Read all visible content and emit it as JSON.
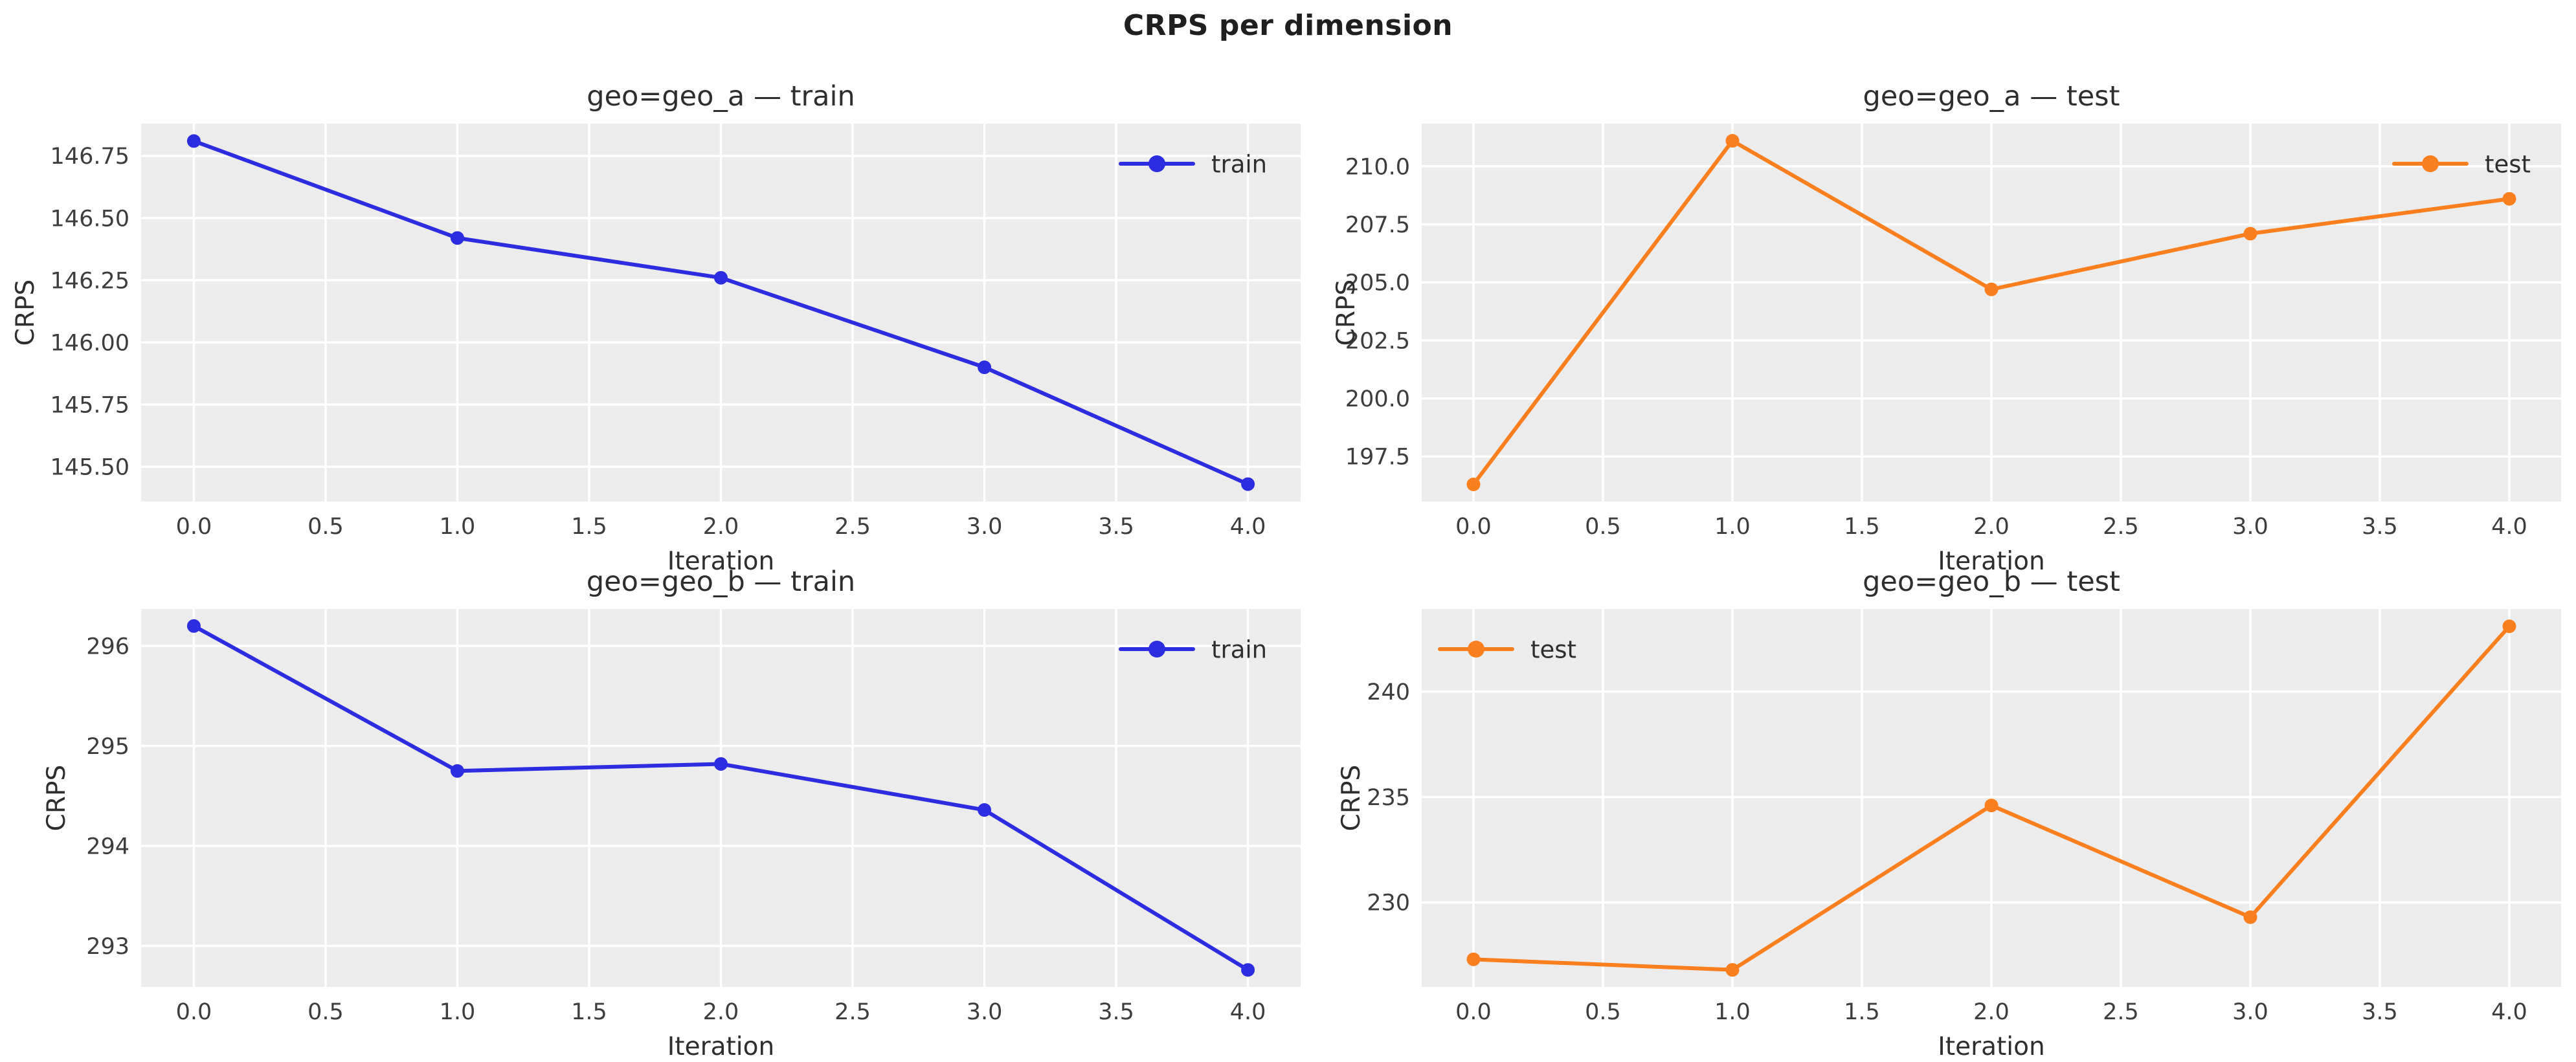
{
  "figure": {
    "suptitle": "CRPS per dimension"
  },
  "colors": {
    "train": "#2c2ce0",
    "test": "#fb7e1f",
    "plot_bg": "#ececec",
    "grid": "#ffffff",
    "title_text": "#2e2e2e",
    "tick_text": "#3d3d3d"
  },
  "chart_data": [
    {
      "type": "line",
      "title": "geo=geo_a — train",
      "xlabel": "Iteration",
      "ylabel": "CRPS",
      "x": [
        0,
        1,
        2,
        3,
        4
      ],
      "y": [
        146.81,
        146.42,
        146.26,
        145.9,
        145.43
      ],
      "xlim": [
        -0.2,
        4.2
      ],
      "ylim": [
        145.36,
        146.88
      ],
      "xticks": [
        0,
        0.5,
        1,
        1.5,
        2,
        2.5,
        3,
        3.5,
        4
      ],
      "xtick_labels": [
        "0.0",
        "0.5",
        "1.0",
        "1.5",
        "2.0",
        "2.5",
        "3.0",
        "3.5",
        "4.0"
      ],
      "yticks": [
        146.75,
        146.5,
        146.25,
        146.0,
        145.75,
        145.5
      ],
      "ytick_labels": [
        "146.75",
        "146.50",
        "146.25",
        "146.00",
        "145.75",
        "145.50"
      ],
      "legend": {
        "label": "train",
        "loc": "upper-right"
      },
      "color_key": "train",
      "grid": true
    },
    {
      "type": "line",
      "title": "geo=geo_a — test",
      "xlabel": "Iteration",
      "ylabel": "CRPS",
      "x": [
        0,
        1,
        2,
        3,
        4
      ],
      "y": [
        196.3,
        211.1,
        204.7,
        207.1,
        208.6
      ],
      "xlim": [
        -0.2,
        4.2
      ],
      "ylim": [
        195.56,
        211.84
      ],
      "xticks": [
        0,
        0.5,
        1,
        1.5,
        2,
        2.5,
        3,
        3.5,
        4
      ],
      "xtick_labels": [
        "0.0",
        "0.5",
        "1.0",
        "1.5",
        "2.0",
        "2.5",
        "3.0",
        "3.5",
        "4.0"
      ],
      "yticks": [
        210.0,
        207.5,
        205.0,
        202.5,
        200.0,
        197.5
      ],
      "ytick_labels": [
        "210.0",
        "207.5",
        "205.0",
        "202.5",
        "200.0",
        "197.5"
      ],
      "legend": {
        "label": "test",
        "loc": "upper-right"
      },
      "color_key": "test",
      "grid": true
    },
    {
      "type": "line",
      "title": "geo=geo_b — train",
      "xlabel": "Iteration",
      "ylabel": "CRPS",
      "x": [
        0,
        1,
        2,
        3,
        4
      ],
      "y": [
        296.2,
        294.75,
        294.82,
        294.36,
        292.76
      ],
      "xlim": [
        -0.2,
        4.2
      ],
      "ylim": [
        292.59,
        296.37
      ],
      "xticks": [
        0,
        0.5,
        1,
        1.5,
        2,
        2.5,
        3,
        3.5,
        4
      ],
      "xtick_labels": [
        "0.0",
        "0.5",
        "1.0",
        "1.5",
        "2.0",
        "2.5",
        "3.0",
        "3.5",
        "4.0"
      ],
      "yticks": [
        296,
        295,
        294,
        293
      ],
      "ytick_labels": [
        "296",
        "295",
        "294",
        "293"
      ],
      "legend": {
        "label": "train",
        "loc": "upper-right"
      },
      "color_key": "train",
      "grid": true
    },
    {
      "type": "line",
      "title": "geo=geo_b — test",
      "xlabel": "Iteration",
      "ylabel": "CRPS",
      "x": [
        0,
        1,
        2,
        3,
        4
      ],
      "y": [
        227.3,
        226.8,
        234.6,
        229.3,
        243.1
      ],
      "xlim": [
        -0.2,
        4.2
      ],
      "ylim": [
        225.99,
        243.92
      ],
      "xticks": [
        0,
        0.5,
        1,
        1.5,
        2,
        2.5,
        3,
        3.5,
        4
      ],
      "xtick_labels": [
        "0.0",
        "0.5",
        "1.0",
        "1.5",
        "2.0",
        "2.5",
        "3.0",
        "3.5",
        "4.0"
      ],
      "yticks": [
        240,
        235,
        230
      ],
      "ytick_labels": [
        "240",
        "235",
        "230"
      ],
      "legend": {
        "label": "test",
        "loc": "upper-left"
      },
      "color_key": "test",
      "grid": true
    }
  ]
}
